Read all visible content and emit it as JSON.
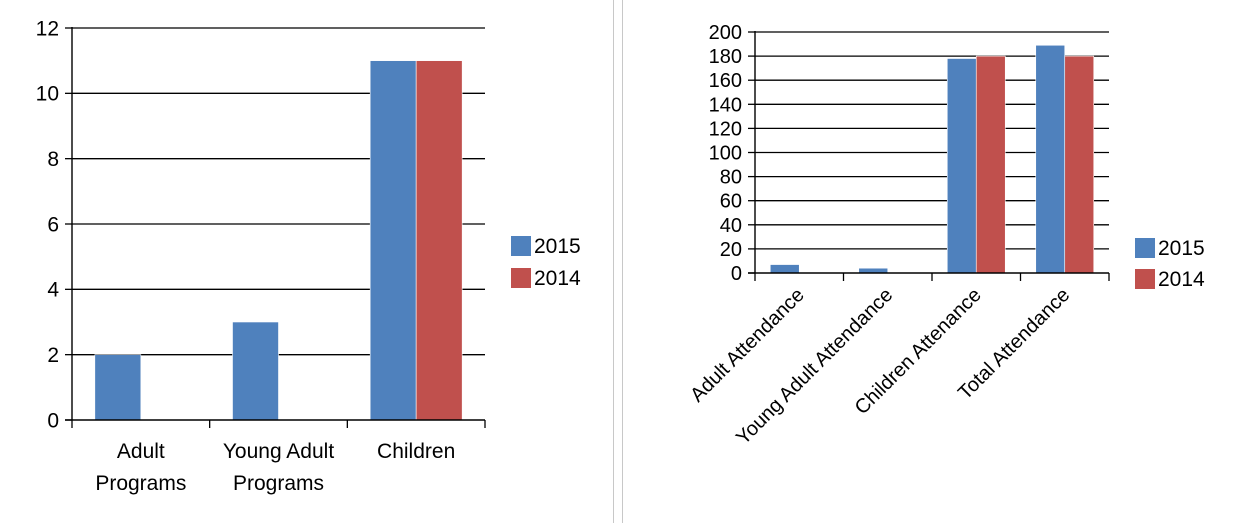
{
  "colors": {
    "s2015": "#4f81bd",
    "s2014": "#c0504d",
    "grid": "#000000"
  },
  "chart_data": [
    {
      "type": "bar",
      "categories": [
        [
          "Adult",
          "Programs"
        ],
        [
          "Young Adult",
          "Programs"
        ],
        [
          "Children"
        ]
      ],
      "series": [
        {
          "name": "2015",
          "values": [
            2,
            3,
            11
          ]
        },
        {
          "name": "2014",
          "values": [
            0,
            0,
            11
          ]
        }
      ],
      "ylim": [
        0,
        12
      ],
      "yticks": [
        "0",
        "2",
        "4",
        "6",
        "8",
        "10",
        "12"
      ],
      "grid": true,
      "legend": "right"
    },
    {
      "type": "bar",
      "categories": [
        "Adult Attendance",
        "Young Adult Attendance",
        "Children Attenance",
        "Total Attendance"
      ],
      "series": [
        {
          "name": "2015",
          "values": [
            7,
            4,
            178,
            189
          ]
        },
        {
          "name": "2014",
          "values": [
            0,
            0,
            180,
            180
          ]
        }
      ],
      "ylim": [
        0,
        200
      ],
      "yticks": [
        "0",
        "20",
        "40",
        "60",
        "80",
        "100",
        "120",
        "140",
        "160",
        "180",
        "200"
      ],
      "grid": true,
      "legend": "right"
    }
  ]
}
